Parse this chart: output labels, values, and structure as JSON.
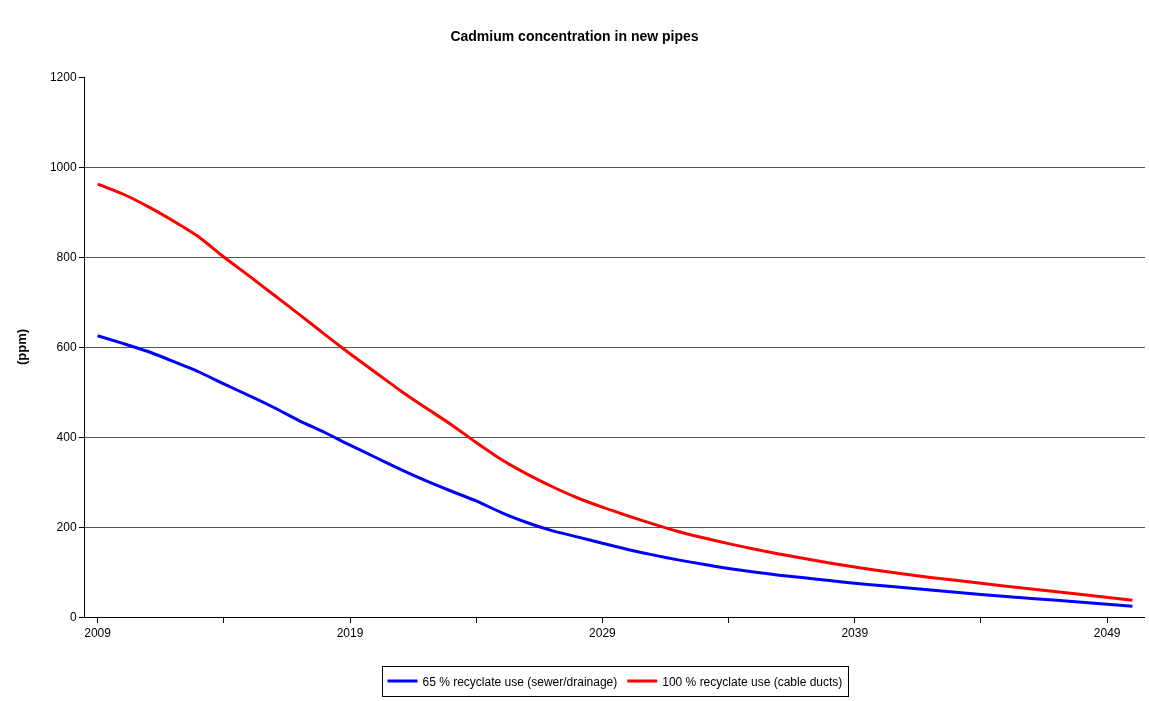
{
  "chart_data": {
    "type": "line",
    "title": "Cadmium concentration in new pipes",
    "ylabel": "(ppm)",
    "x": [
      2009,
      2010,
      2011,
      2012,
      2013,
      2014,
      2015,
      2016,
      2017,
      2018,
      2019,
      2020,
      2021,
      2022,
      2023,
      2024,
      2025,
      2026,
      2027,
      2028,
      2029,
      2030,
      2031,
      2032,
      2033,
      2034,
      2035,
      2036,
      2037,
      2038,
      2039,
      2040,
      2042,
      2044,
      2046,
      2048,
      2050
    ],
    "series": [
      {
        "name": "65 % recyclate use (sewer/drainage)",
        "color": "#0000ff",
        "values": [
          625,
          608,
          590,
          568,
          545,
          518,
          492,
          465,
          436,
          410,
          382,
          355,
          328,
          303,
          280,
          258,
          232,
          210,
          192,
          178,
          164,
          150,
          138,
          127,
          117,
          108,
          100,
          93,
          87,
          81,
          75,
          70,
          60,
          50,
          41,
          33,
          24
        ]
      },
      {
        "name": "100 % recyclate use (cable ducts)",
        "color": "#ff0000",
        "values": [
          962,
          940,
          912,
          880,
          845,
          800,
          758,
          715,
          672,
          628,
          585,
          544,
          503,
          465,
          428,
          388,
          350,
          318,
          290,
          265,
          244,
          225,
          207,
          190,
          176,
          163,
          151,
          140,
          130,
          120,
          111,
          103,
          88,
          75,
          62,
          50,
          37
        ]
      }
    ],
    "xlim": [
      2008.5,
      2050.5
    ],
    "xticks": [
      2009,
      {
        "value": 2014,
        "label": null
      },
      2019,
      {
        "value": 2024,
        "label": null
      },
      2029,
      {
        "value": 2034,
        "label": null
      },
      2039,
      {
        "value": 2044,
        "label": null
      },
      2049
    ],
    "ylim": [
      0,
      1200
    ],
    "yticks": [
      0,
      200,
      400,
      600,
      800,
      1000,
      1200
    ],
    "grid": "y",
    "legend": "bottom",
    "marker": "none",
    "line_style": "solid"
  }
}
